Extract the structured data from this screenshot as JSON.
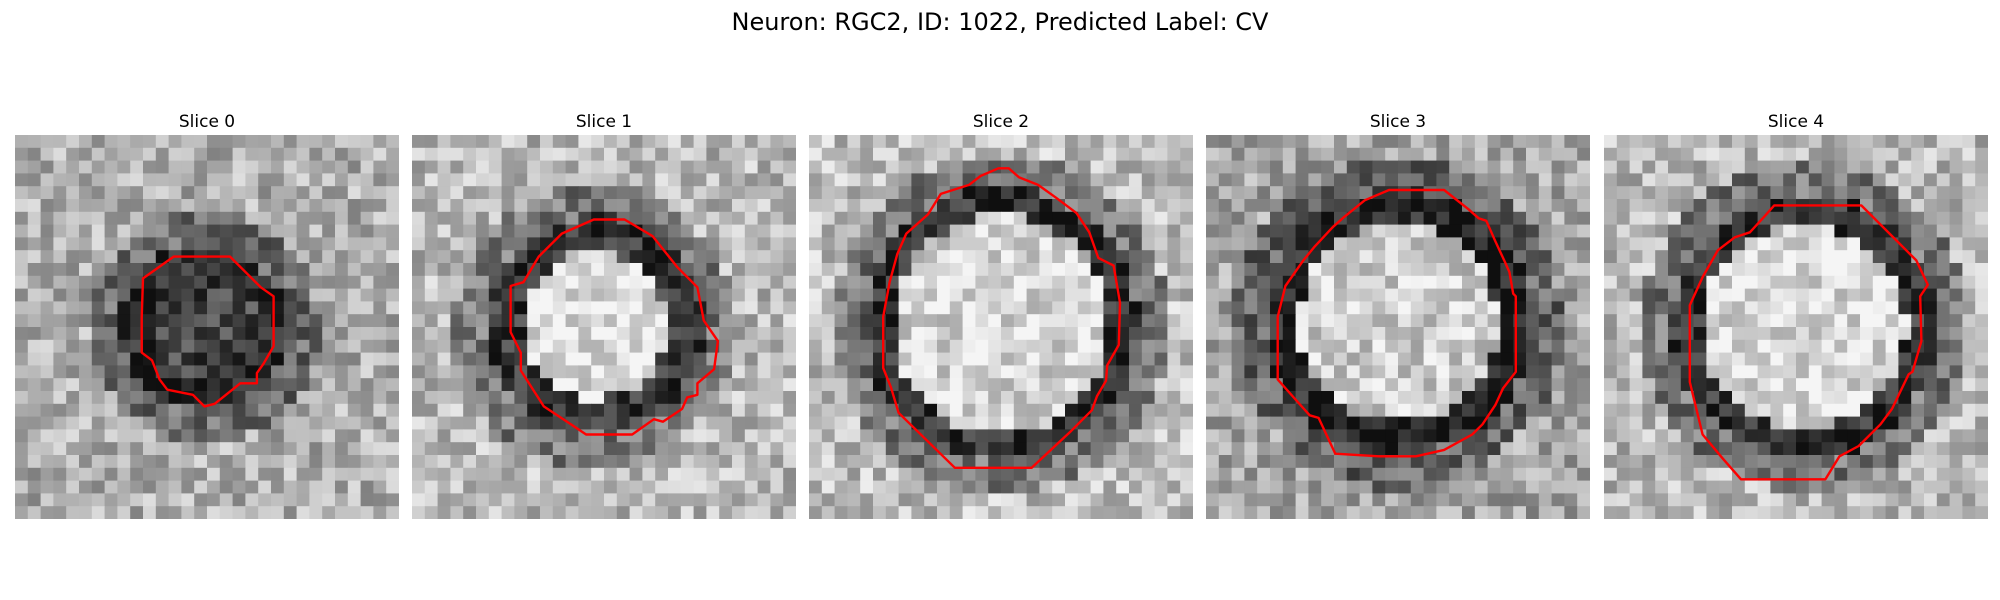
{
  "figure": {
    "title": "Neuron: RGC2, ID: 1022, Predicted Label: CV"
  },
  "colors": {
    "contour": "#ff0000",
    "background": "#ffffff"
  },
  "panels": [
    {
      "title": "Slice 0"
    },
    {
      "title": "Slice 1"
    },
    {
      "title": "Slice 2"
    },
    {
      "title": "Slice 3"
    },
    {
      "title": "Slice 4"
    }
  ]
}
